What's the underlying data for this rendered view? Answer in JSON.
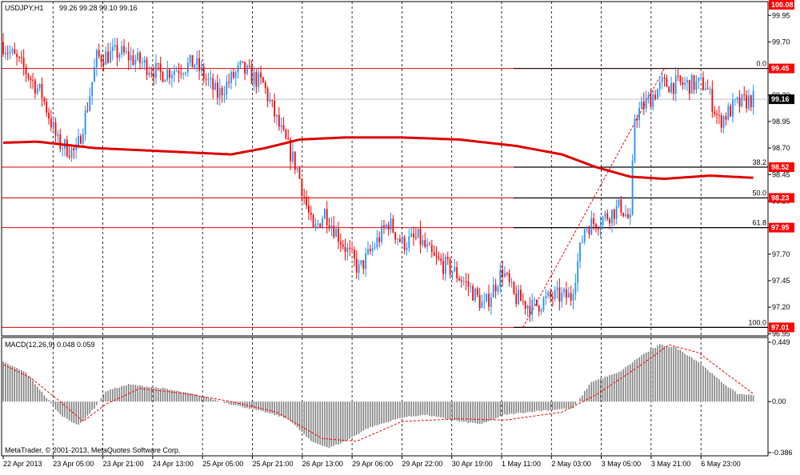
{
  "header": {
    "symbol": "USDJPY,H1",
    "ohlc": "99.26 99.28 99.10 99.16"
  },
  "macd_header": "MACD(12,26,9) 0.048 0.059",
  "copyright": "MetaTrader, © 2001-2013, MetaQuotes Software Corp.",
  "colors": {
    "background": "#ffffff",
    "grid": "#000000",
    "bull": "#1e90ff",
    "bear": "#ff0000",
    "ma": "#dd0000",
    "level_line": "#dd0000",
    "fibo": "#000000",
    "macd_hist": "#808080",
    "macd_signal": "#ff0000",
    "price_label_bg": "#ff0000",
    "current_price_bg": "#000000"
  },
  "chart_data": {
    "type": "candlestick",
    "price_axis": {
      "ticks": [
        "99.95",
        "99.70",
        "99.45",
        "99.20",
        "98.95",
        "98.70",
        "98.45",
        "98.20",
        "97.95",
        "97.70",
        "97.45",
        "97.20",
        "96.95"
      ],
      "range": [
        96.93,
        100.08
      ]
    },
    "time_axis": [
      "22 Apr 2013",
      "23 Apr 05:00",
      "23 Apr 21:00",
      "24 Apr 13:00",
      "25 Apr 05:00",
      "25 Apr 21:00",
      "26 Apr 13:00",
      "29 Apr 06:00",
      "29 Apr 22:00",
      "30 Apr 19:00",
      "1 May 11:00",
      "2 May 03:00",
      "3 May 05:00",
      "3 May 21:00",
      "6 May 23:00"
    ],
    "price_labels": [
      {
        "text": "100.08",
        "value": 100.08
      },
      {
        "text": "99.45",
        "value": 99.45
      },
      {
        "text": "99.16",
        "value": 99.16,
        "current": true
      },
      {
        "text": "98.52",
        "value": 98.52
      },
      {
        "text": "98.23",
        "value": 98.23
      },
      {
        "text": "97.95",
        "value": 97.95
      },
      {
        "text": "97.01",
        "value": 97.01
      }
    ],
    "horizontal_levels": [
      99.45,
      98.52,
      98.23,
      97.95,
      97.01
    ],
    "fibonacci": [
      {
        "label": "0.0",
        "value": 99.45
      },
      {
        "label": "38.2",
        "value": 98.52
      },
      {
        "label": "50.0",
        "value": 98.23
      },
      {
        "label": "61.8",
        "value": 97.95
      },
      {
        "label": "100.0",
        "value": 97.01
      }
    ],
    "fib_trend": {
      "from": {
        "bar": 228,
        "price": 97.01
      },
      "to": {
        "bar": 290,
        "price": 99.45
      }
    },
    "moving_average": [
      {
        "bar": 0,
        "value": 98.75
      },
      {
        "bar": 15,
        "value": 98.76
      },
      {
        "bar": 40,
        "value": 98.7
      },
      {
        "bar": 80,
        "value": 98.66
      },
      {
        "bar": 100,
        "value": 98.64
      },
      {
        "bar": 115,
        "value": 98.7
      },
      {
        "bar": 130,
        "value": 98.78
      },
      {
        "bar": 150,
        "value": 98.8
      },
      {
        "bar": 175,
        "value": 98.8
      },
      {
        "bar": 200,
        "value": 98.78
      },
      {
        "bar": 225,
        "value": 98.72
      },
      {
        "bar": 245,
        "value": 98.64
      },
      {
        "bar": 260,
        "value": 98.52
      },
      {
        "bar": 275,
        "value": 98.43
      },
      {
        "bar": 290,
        "value": 98.41
      },
      {
        "bar": 310,
        "value": 98.44
      },
      {
        "bar": 329,
        "value": 98.42
      }
    ],
    "price_path": [
      {
        "bar": 0,
        "value": 99.7
      },
      {
        "bar": 10,
        "value": 99.45
      },
      {
        "bar": 18,
        "value": 99.2
      },
      {
        "bar": 25,
        "value": 98.75
      },
      {
        "bar": 33,
        "value": 98.65
      },
      {
        "bar": 38,
        "value": 99.1
      },
      {
        "bar": 42,
        "value": 99.55
      },
      {
        "bar": 52,
        "value": 99.6
      },
      {
        "bar": 62,
        "value": 99.5
      },
      {
        "bar": 70,
        "value": 99.4
      },
      {
        "bar": 85,
        "value": 99.5
      },
      {
        "bar": 95,
        "value": 99.2
      },
      {
        "bar": 105,
        "value": 99.45
      },
      {
        "bar": 115,
        "value": 99.3
      },
      {
        "bar": 122,
        "value": 98.9
      },
      {
        "bar": 130,
        "value": 98.5
      },
      {
        "bar": 137,
        "value": 97.9
      },
      {
        "bar": 142,
        "value": 98.1
      },
      {
        "bar": 150,
        "value": 97.8
      },
      {
        "bar": 157,
        "value": 97.55
      },
      {
        "bar": 163,
        "value": 97.75
      },
      {
        "bar": 170,
        "value": 98.0
      },
      {
        "bar": 176,
        "value": 97.8
      },
      {
        "bar": 183,
        "value": 97.85
      },
      {
        "bar": 190,
        "value": 97.65
      },
      {
        "bar": 198,
        "value": 97.55
      },
      {
        "bar": 205,
        "value": 97.4
      },
      {
        "bar": 212,
        "value": 97.2
      },
      {
        "bar": 220,
        "value": 97.55
      },
      {
        "bar": 225,
        "value": 97.3
      },
      {
        "bar": 233,
        "value": 97.2
      },
      {
        "bar": 242,
        "value": 97.3
      },
      {
        "bar": 250,
        "value": 97.3
      },
      {
        "bar": 256,
        "value": 97.95
      },
      {
        "bar": 265,
        "value": 98.05
      },
      {
        "bar": 272,
        "value": 98.15
      },
      {
        "bar": 276,
        "value": 98.0
      },
      {
        "bar": 278,
        "value": 99.0
      },
      {
        "bar": 282,
        "value": 99.1
      },
      {
        "bar": 290,
        "value": 99.3
      },
      {
        "bar": 300,
        "value": 99.3
      },
      {
        "bar": 309,
        "value": 99.3
      },
      {
        "bar": 315,
        "value": 98.95
      },
      {
        "bar": 322,
        "value": 99.1
      },
      {
        "bar": 329,
        "value": 99.16
      }
    ],
    "macd": {
      "ticks": [
        "0.449",
        "0.00",
        "-0.386"
      ],
      "range": [
        -0.386,
        0.449
      ],
      "histogram_path": [
        {
          "bar": 0,
          "value": 0.3
        },
        {
          "bar": 10,
          "value": 0.22
        },
        {
          "bar": 18,
          "value": 0.05
        },
        {
          "bar": 25,
          "value": -0.1
        },
        {
          "bar": 33,
          "value": -0.18
        },
        {
          "bar": 40,
          "value": -0.05
        },
        {
          "bar": 45,
          "value": 0.08
        },
        {
          "bar": 55,
          "value": 0.13
        },
        {
          "bar": 70,
          "value": 0.1
        },
        {
          "bar": 85,
          "value": 0.05
        },
        {
          "bar": 100,
          "value": -0.02
        },
        {
          "bar": 115,
          "value": -0.08
        },
        {
          "bar": 125,
          "value": -0.13
        },
        {
          "bar": 135,
          "value": -0.3
        },
        {
          "bar": 143,
          "value": -0.35
        },
        {
          "bar": 150,
          "value": -0.3
        },
        {
          "bar": 160,
          "value": -0.2
        },
        {
          "bar": 175,
          "value": -0.12
        },
        {
          "bar": 185,
          "value": -0.1
        },
        {
          "bar": 200,
          "value": -0.15
        },
        {
          "bar": 210,
          "value": -0.17
        },
        {
          "bar": 220,
          "value": -0.1
        },
        {
          "bar": 235,
          "value": -0.07
        },
        {
          "bar": 250,
          "value": -0.05
        },
        {
          "bar": 258,
          "value": 0.15
        },
        {
          "bar": 270,
          "value": 0.22
        },
        {
          "bar": 280,
          "value": 0.35
        },
        {
          "bar": 288,
          "value": 0.43
        },
        {
          "bar": 295,
          "value": 0.41
        },
        {
          "bar": 305,
          "value": 0.3
        },
        {
          "bar": 315,
          "value": 0.15
        },
        {
          "bar": 322,
          "value": 0.06
        },
        {
          "bar": 329,
          "value": 0.048
        }
      ],
      "signal_path": [
        {
          "bar": 0,
          "value": 0.28
        },
        {
          "bar": 12,
          "value": 0.18
        },
        {
          "bar": 25,
          "value": 0.0
        },
        {
          "bar": 35,
          "value": -0.15
        },
        {
          "bar": 45,
          "value": -0.02
        },
        {
          "bar": 60,
          "value": 0.1
        },
        {
          "bar": 80,
          "value": 0.06
        },
        {
          "bar": 100,
          "value": 0.0
        },
        {
          "bar": 120,
          "value": -0.08
        },
        {
          "bar": 140,
          "value": -0.28
        },
        {
          "bar": 155,
          "value": -0.3
        },
        {
          "bar": 175,
          "value": -0.15
        },
        {
          "bar": 200,
          "value": -0.13
        },
        {
          "bar": 220,
          "value": -0.14
        },
        {
          "bar": 245,
          "value": -0.08
        },
        {
          "bar": 260,
          "value": 0.05
        },
        {
          "bar": 280,
          "value": 0.28
        },
        {
          "bar": 292,
          "value": 0.43
        },
        {
          "bar": 305,
          "value": 0.37
        },
        {
          "bar": 318,
          "value": 0.2
        },
        {
          "bar": 329,
          "value": 0.059
        }
      ]
    }
  }
}
